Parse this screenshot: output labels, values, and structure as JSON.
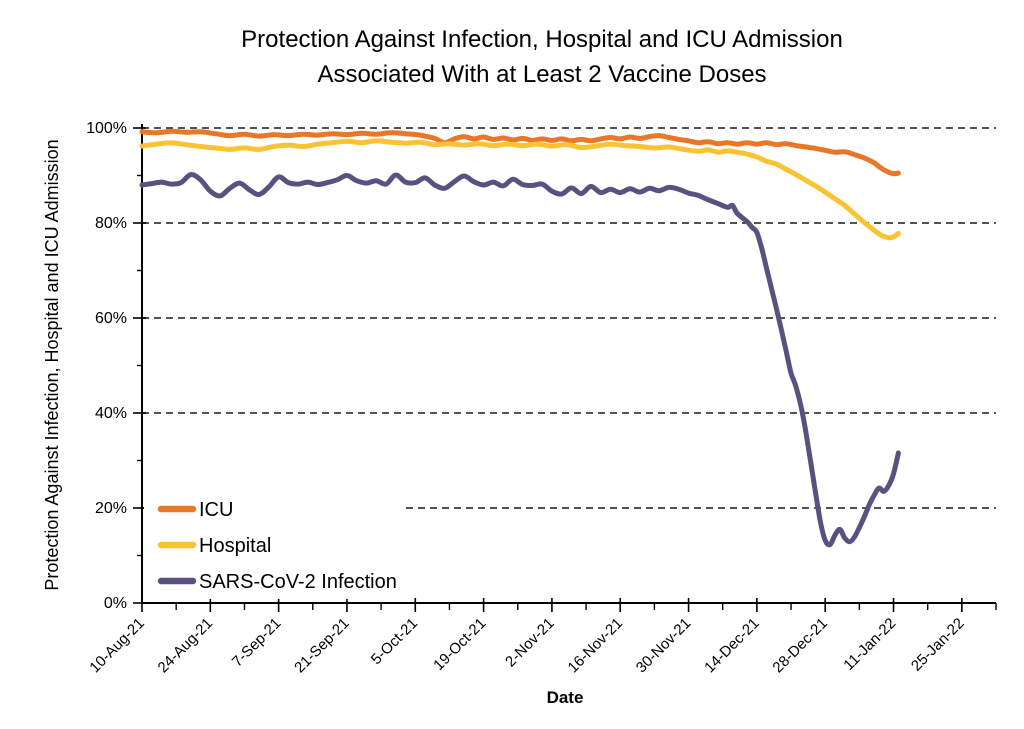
{
  "title": {
    "line1": "Protection Against Infection, Hospital and ICU Admission",
    "line2": "Associated With at Least 2 Vaccine Doses"
  },
  "colors": {
    "icu": "#E87728",
    "hospital": "#FBC334",
    "infection": "#5B5180",
    "gridline": "#1a1a1a",
    "axis": "#000000",
    "background": "#ffffff"
  },
  "chart_data": {
    "type": "line",
    "title": "Protection Against Infection, Hospital and ICU Admission Associated With at Least 2 Vaccine Doses",
    "xlabel": "Date",
    "ylabel": "Protection Against Infection, Hospital and ICU Admission",
    "x_axis": {
      "unit": "days since 10-Aug-21",
      "major_tick_interval_days": 14,
      "minor_tick_interval_days": 7,
      "tick_labels": [
        "10-Aug-21",
        "24-Aug-21",
        "7-Sep-21",
        "21-Sep-21",
        "5-Oct-21",
        "19-Oct-21",
        "2-Nov-21",
        "16-Nov-21",
        "30-Nov-21",
        "14-Dec-21",
        "28-Dec-21",
        "11-Jan-22",
        "25-Jan-22"
      ]
    },
    "y_axis": {
      "tick_labels": [
        "0%",
        "20%",
        "40%",
        "60%",
        "80%",
        "100%"
      ],
      "tick_values": [
        0,
        20,
        40,
        60,
        80,
        100
      ],
      "minor_tick_step": 10,
      "ylim": [
        0,
        100
      ]
    },
    "grid": "horizontal dashed lines at 20/40/60/80/100%",
    "legend_position": "inside lower-left",
    "series": [
      {
        "name": "ICU",
        "color": "#E87728",
        "points": [
          [
            0,
            99.2
          ],
          [
            3,
            99.0
          ],
          [
            6,
            99.3
          ],
          [
            9,
            99.1
          ],
          [
            12,
            99.2
          ],
          [
            15,
            98.8
          ],
          [
            18,
            98.4
          ],
          [
            21,
            98.7
          ],
          [
            24,
            98.3
          ],
          [
            27,
            98.6
          ],
          [
            30,
            98.4
          ],
          [
            33,
            98.7
          ],
          [
            36,
            98.5
          ],
          [
            39,
            98.8
          ],
          [
            42,
            98.6
          ],
          [
            45,
            98.9
          ],
          [
            48,
            98.7
          ],
          [
            51,
            99.0
          ],
          [
            54,
            98.8
          ],
          [
            57,
            98.5
          ],
          [
            60,
            97.8
          ],
          [
            62,
            96.9
          ],
          [
            64,
            97.7
          ],
          [
            66,
            98.2
          ],
          [
            68,
            97.7
          ],
          [
            70,
            98.1
          ],
          [
            72,
            97.6
          ],
          [
            74,
            97.9
          ],
          [
            76,
            97.5
          ],
          [
            78,
            97.8
          ],
          [
            80,
            97.4
          ],
          [
            82,
            97.7
          ],
          [
            84,
            97.4
          ],
          [
            86,
            97.7
          ],
          [
            88,
            97.3
          ],
          [
            90,
            97.6
          ],
          [
            92,
            97.3
          ],
          [
            94,
            97.7
          ],
          [
            96,
            98.0
          ],
          [
            98,
            97.7
          ],
          [
            100,
            98.1
          ],
          [
            102,
            97.8
          ],
          [
            104,
            98.2
          ],
          [
            106,
            98.4
          ],
          [
            108,
            98.0
          ],
          [
            110,
            97.6
          ],
          [
            112,
            97.3
          ],
          [
            114,
            96.9
          ],
          [
            116,
            97.1
          ],
          [
            118,
            96.7
          ],
          [
            120,
            96.9
          ],
          [
            122,
            96.6
          ],
          [
            124,
            96.9
          ],
          [
            126,
            96.6
          ],
          [
            128,
            96.9
          ],
          [
            130,
            96.5
          ],
          [
            132,
            96.7
          ],
          [
            134,
            96.3
          ],
          [
            136,
            96.0
          ],
          [
            138,
            95.7
          ],
          [
            140,
            95.3
          ],
          [
            142,
            94.9
          ],
          [
            144,
            95.0
          ],
          [
            146,
            94.4
          ],
          [
            148,
            93.7
          ],
          [
            150,
            92.7
          ],
          [
            151,
            91.9
          ],
          [
            152,
            91.2
          ],
          [
            153,
            90.7
          ],
          [
            154,
            90.4
          ],
          [
            155,
            90.5
          ]
        ]
      },
      {
        "name": "Hospital",
        "color": "#FBC334",
        "points": [
          [
            0,
            96.2
          ],
          [
            3,
            96.6
          ],
          [
            6,
            96.9
          ],
          [
            9,
            96.5
          ],
          [
            12,
            96.1
          ],
          [
            15,
            95.8
          ],
          [
            18,
            95.5
          ],
          [
            21,
            95.8
          ],
          [
            24,
            95.5
          ],
          [
            27,
            96.1
          ],
          [
            30,
            96.4
          ],
          [
            33,
            96.1
          ],
          [
            36,
            96.6
          ],
          [
            39,
            96.9
          ],
          [
            42,
            97.2
          ],
          [
            45,
            96.9
          ],
          [
            48,
            97.3
          ],
          [
            51,
            97.0
          ],
          [
            54,
            96.8
          ],
          [
            57,
            97.0
          ],
          [
            60,
            96.5
          ],
          [
            63,
            96.7
          ],
          [
            66,
            96.4
          ],
          [
            69,
            96.7
          ],
          [
            72,
            96.3
          ],
          [
            75,
            96.6
          ],
          [
            78,
            96.3
          ],
          [
            81,
            96.6
          ],
          [
            84,
            96.2
          ],
          [
            87,
            96.5
          ],
          [
            90,
            95.9
          ],
          [
            93,
            96.2
          ],
          [
            96,
            96.6
          ],
          [
            99,
            96.3
          ],
          [
            102,
            96.1
          ],
          [
            105,
            95.8
          ],
          [
            108,
            96.0
          ],
          [
            111,
            95.5
          ],
          [
            114,
            95.1
          ],
          [
            116,
            95.4
          ],
          [
            118,
            94.9
          ],
          [
            120,
            95.2
          ],
          [
            122,
            94.9
          ],
          [
            124,
            94.5
          ],
          [
            126,
            93.9
          ],
          [
            128,
            93.0
          ],
          [
            130,
            92.4
          ],
          [
            132,
            91.3
          ],
          [
            134,
            90.2
          ],
          [
            136,
            89.0
          ],
          [
            138,
            87.8
          ],
          [
            140,
            86.5
          ],
          [
            142,
            85.1
          ],
          [
            144,
            83.7
          ],
          [
            146,
            81.9
          ],
          [
            148,
            80.1
          ],
          [
            149,
            79.3
          ],
          [
            150,
            78.5
          ],
          [
            151,
            77.7
          ],
          [
            152,
            77.2
          ],
          [
            153,
            76.9
          ],
          [
            154,
            77.1
          ],
          [
            155,
            77.8
          ]
        ]
      },
      {
        "name": "SARS-CoV-2 Infection",
        "color": "#5B5180",
        "points": [
          [
            0,
            88.0
          ],
          [
            2,
            88.3
          ],
          [
            4,
            88.6
          ],
          [
            6,
            88.2
          ],
          [
            8,
            88.5
          ],
          [
            10,
            90.2
          ],
          [
            12,
            89.1
          ],
          [
            14,
            86.7
          ],
          [
            16,
            85.7
          ],
          [
            18,
            87.3
          ],
          [
            20,
            88.4
          ],
          [
            22,
            87.0
          ],
          [
            24,
            86.0
          ],
          [
            26,
            87.6
          ],
          [
            28,
            89.7
          ],
          [
            30,
            88.5
          ],
          [
            32,
            88.2
          ],
          [
            34,
            88.6
          ],
          [
            36,
            88.1
          ],
          [
            38,
            88.5
          ],
          [
            40,
            89.1
          ],
          [
            42,
            90.0
          ],
          [
            44,
            88.9
          ],
          [
            46,
            88.4
          ],
          [
            48,
            88.9
          ],
          [
            50,
            88.2
          ],
          [
            52,
            90.1
          ],
          [
            54,
            88.6
          ],
          [
            56,
            88.5
          ],
          [
            58,
            89.5
          ],
          [
            60,
            88.0
          ],
          [
            62,
            87.3
          ],
          [
            64,
            88.7
          ],
          [
            66,
            89.9
          ],
          [
            68,
            88.7
          ],
          [
            70,
            88.0
          ],
          [
            72,
            88.6
          ],
          [
            74,
            87.8
          ],
          [
            76,
            89.2
          ],
          [
            78,
            88.1
          ],
          [
            80,
            87.9
          ],
          [
            82,
            88.2
          ],
          [
            84,
            86.7
          ],
          [
            86,
            86.1
          ],
          [
            88,
            87.4
          ],
          [
            90,
            86.2
          ],
          [
            92,
            87.7
          ],
          [
            94,
            86.4
          ],
          [
            96,
            87.1
          ],
          [
            98,
            86.4
          ],
          [
            100,
            87.2
          ],
          [
            102,
            86.5
          ],
          [
            104,
            87.3
          ],
          [
            106,
            86.8
          ],
          [
            108,
            87.5
          ],
          [
            110,
            87.1
          ],
          [
            112,
            86.3
          ],
          [
            114,
            85.8
          ],
          [
            116,
            84.9
          ],
          [
            118,
            84.1
          ],
          [
            120,
            83.3
          ],
          [
            121,
            83.7
          ],
          [
            122,
            82.0
          ],
          [
            124,
            80.3
          ],
          [
            125,
            79.1
          ],
          [
            126,
            78.0
          ],
          [
            127,
            74.6
          ],
          [
            128,
            70.4
          ],
          [
            129,
            66.2
          ],
          [
            130,
            62.0
          ],
          [
            131,
            57.6
          ],
          [
            132,
            53.0
          ],
          [
            133,
            48.4
          ],
          [
            134,
            45.6
          ],
          [
            135,
            41.6
          ],
          [
            136,
            36.2
          ],
          [
            137,
            29.8
          ],
          [
            138,
            23.4
          ],
          [
            139,
            17.2
          ],
          [
            140,
            13.2
          ],
          [
            141,
            12.3
          ],
          [
            142,
            14.3
          ],
          [
            143,
            15.5
          ],
          [
            144,
            13.7
          ],
          [
            145,
            12.9
          ],
          [
            146,
            13.9
          ],
          [
            147,
            15.9
          ],
          [
            148,
            18.1
          ],
          [
            149,
            20.6
          ],
          [
            150,
            22.6
          ],
          [
            151,
            24.2
          ],
          [
            152,
            23.5
          ],
          [
            153,
            24.7
          ],
          [
            154,
            27.2
          ],
          [
            155,
            31.6
          ]
        ]
      }
    ]
  }
}
